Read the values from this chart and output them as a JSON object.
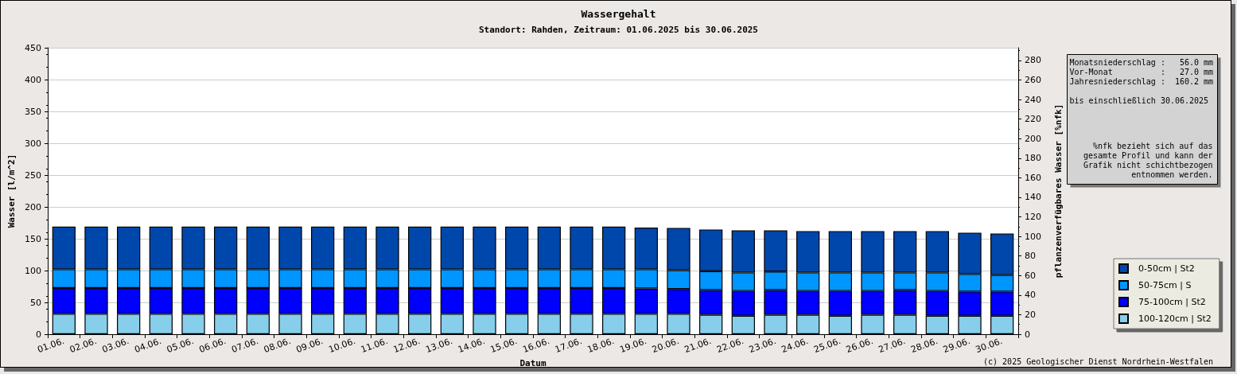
{
  "chart_data": {
    "type": "bar",
    "title": "Wassergehalt",
    "subtitle": "Standort: Rahden, Zeitraum: 01.06.2025 bis 30.06.2025",
    "xlabel": "Datum",
    "ylabel": "Wasser [l/m^2]",
    "y2label": "pflanzenverfügbares Wasser [%nfk]",
    "categories": [
      "01.06.",
      "02.06.",
      "03.06.",
      "04.06.",
      "05.06.",
      "06.06.",
      "07.06.",
      "08.06.",
      "09.06.",
      "10.06.",
      "11.06.",
      "12.06.",
      "13.06.",
      "14.06.",
      "15.06.",
      "16.06.",
      "17.06.",
      "18.06.",
      "19.06.",
      "20.06.",
      "21.06.",
      "22.06.",
      "23.06.",
      "24.06.",
      "25.06.",
      "26.06.",
      "27.06.",
      "28.06.",
      "29.06.",
      "30.06."
    ],
    "stacked": true,
    "series": [
      {
        "name": "100-120cm | St2",
        "color": "#87ceeb",
        "values": [
          32,
          32,
          32,
          32,
          32,
          32,
          32,
          32,
          32,
          32,
          32,
          32,
          32,
          32,
          32,
          32,
          32,
          32,
          32,
          32,
          30.5,
          29,
          30.5,
          30.5,
          29,
          30.5,
          30.5,
          29,
          29,
          29
        ]
      },
      {
        "name": "75-100cm | St2",
        "color": "#0000ff",
        "values": [
          40.5,
          40.5,
          40.5,
          40.5,
          40.5,
          40.5,
          40.5,
          40.5,
          40.5,
          40.5,
          40.5,
          40.5,
          40.5,
          40.5,
          40.5,
          40.5,
          40.5,
          40.5,
          40,
          39,
          39,
          39,
          39,
          37.5,
          39,
          37.5,
          39,
          39,
          38,
          38
        ]
      },
      {
        "name": "50-75cm | S",
        "color": "#0096ff",
        "values": [
          29.5,
          29.5,
          29.5,
          29.5,
          29.5,
          29.5,
          29.5,
          29.5,
          29.5,
          29.5,
          29.5,
          29.5,
          29.5,
          29.5,
          29.5,
          29.5,
          29.5,
          29.5,
          30,
          29.5,
          29.5,
          29,
          29,
          29,
          29,
          29,
          27.5,
          29,
          27.5,
          26
        ]
      },
      {
        "name": "0-50cm | St2",
        "color": "#0047ab",
        "values": [
          67,
          67,
          67,
          67,
          67,
          67,
          67,
          67,
          67,
          67,
          67,
          67,
          67,
          67,
          67,
          67,
          67,
          67,
          65.5,
          66.5,
          65.5,
          66,
          64.5,
          65,
          65,
          65,
          65,
          65,
          65,
          65
        ]
      }
    ],
    "ylim": [
      0,
      450
    ],
    "yticks": [
      0,
      50,
      100,
      150,
      200,
      250,
      300,
      350,
      400,
      450
    ],
    "y2lim": [
      0,
      293
    ],
    "y2ticks": [
      0,
      20,
      40,
      60,
      80,
      100,
      120,
      140,
      160,
      180,
      200,
      220,
      240,
      260,
      280
    ],
    "grid": "y",
    "legend": "right",
    "annotations": [
      "Monatsniederschlag :   56.0 mm\nVor-Monat          :   27.0 mm\nJahresniederschlag :  160.2 mm\n\nbis einschließlich 30.06.2025",
      "%nfk bezieht sich auf das\ngesamte Profil und kann der\nGrafik nicht schichtbezogen\nentnommen werden.",
      "(c) 2025 Geologischer Dienst Nordrhein-Westfalen"
    ]
  }
}
